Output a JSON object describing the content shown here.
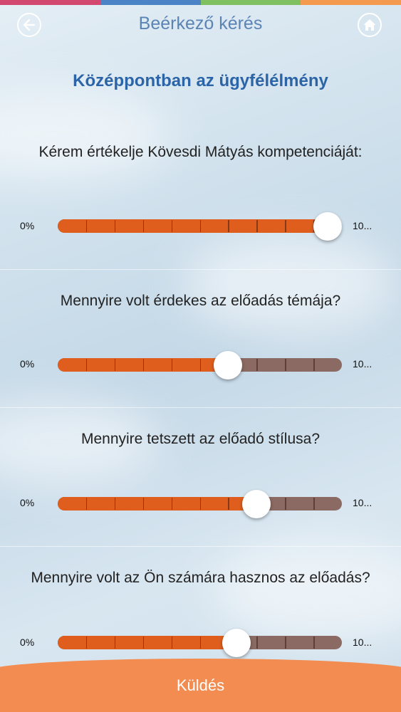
{
  "header": {
    "title": "Beérkező kérés",
    "back_icon": "arrow-left-icon",
    "home_icon": "home-icon",
    "stripe_colors": [
      "#d2486f",
      "#4a84c6",
      "#7fc160",
      "#f39a4f"
    ]
  },
  "subtitle": "Középpontban az ügyfélélmény",
  "sliders": [
    {
      "question": "Kérem értékelje Kövesdi Mátyás kompetenciáját:",
      "min_label": "0%",
      "max_label": "10...",
      "value_fraction": 0.95
    },
    {
      "question": "Mennyire volt érdekes az előadás témája?",
      "min_label": "0%",
      "max_label": "10...",
      "value_fraction": 0.6
    },
    {
      "question": "Mennyire tetszett az előadó stílusa?",
      "min_label": "0%",
      "max_label": "10...",
      "value_fraction": 0.7
    },
    {
      "question": "Mennyire volt az Ön számára hasznos az előadás?",
      "min_label": "0%",
      "max_label": "10...",
      "value_fraction": 0.63
    }
  ],
  "submit_label": "Küldés",
  "colors": {
    "accent_orange": "#df5e1d",
    "track_unfilled": "#8a6a62",
    "title_blue": "#5b84b5",
    "subtitle_blue": "#2c64a8",
    "submit_bar": "#f28c50"
  }
}
